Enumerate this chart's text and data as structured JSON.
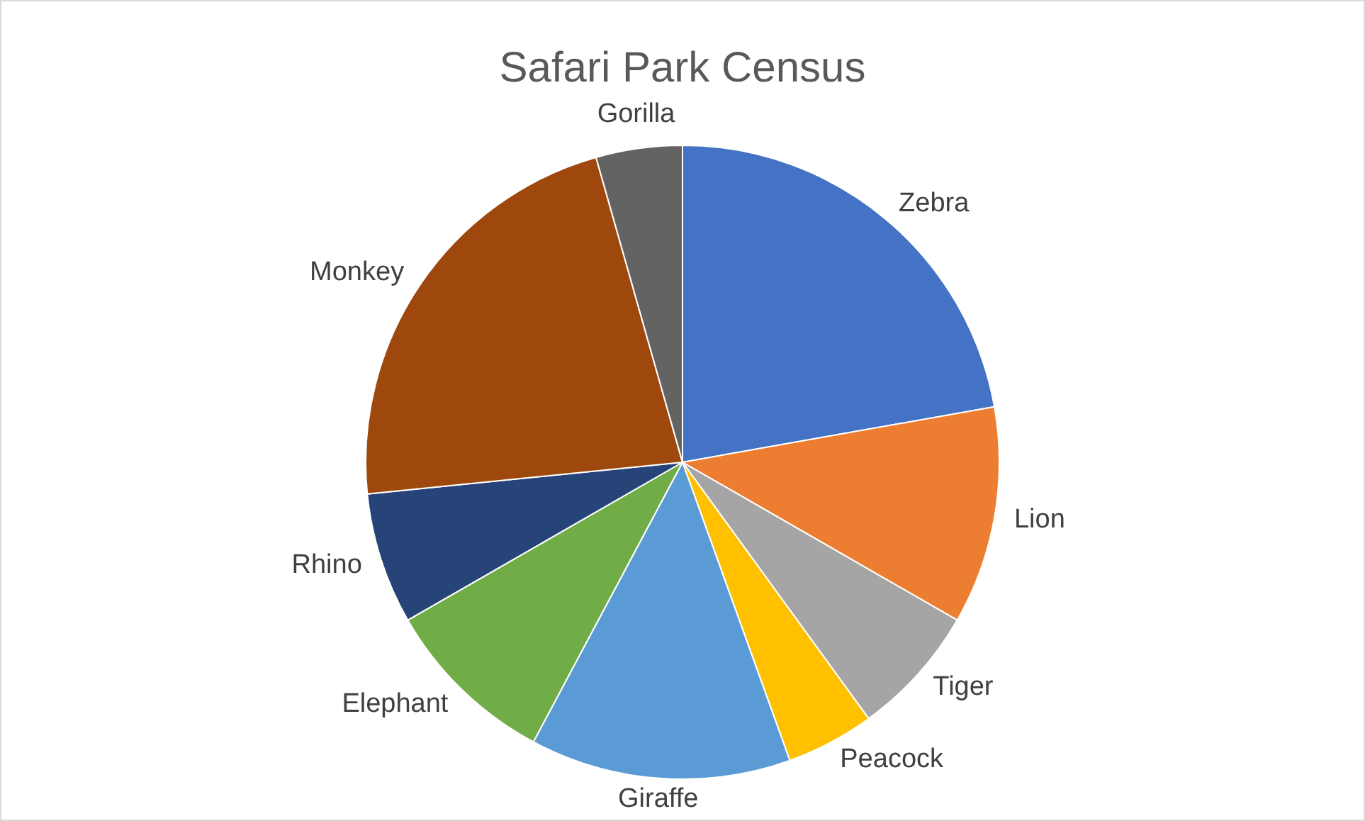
{
  "chart_data": {
    "type": "pie",
    "title": "Safari Park Census",
    "categories": [
      "Zebra",
      "Lion",
      "Tiger",
      "Peacock",
      "Giraffe",
      "Elephant",
      "Rhino",
      "Monkey",
      "Gorilla"
    ],
    "values": [
      22.2,
      11.1,
      6.7,
      4.5,
      13.3,
      8.9,
      6.7,
      22.2,
      4.4
    ],
    "colors": [
      "#4472c4",
      "#ed7d31",
      "#a5a5a5",
      "#ffc000",
      "#5b9bd5",
      "#70ad47",
      "#264478",
      "#9e480e",
      "#636363"
    ],
    "legend": false
  }
}
